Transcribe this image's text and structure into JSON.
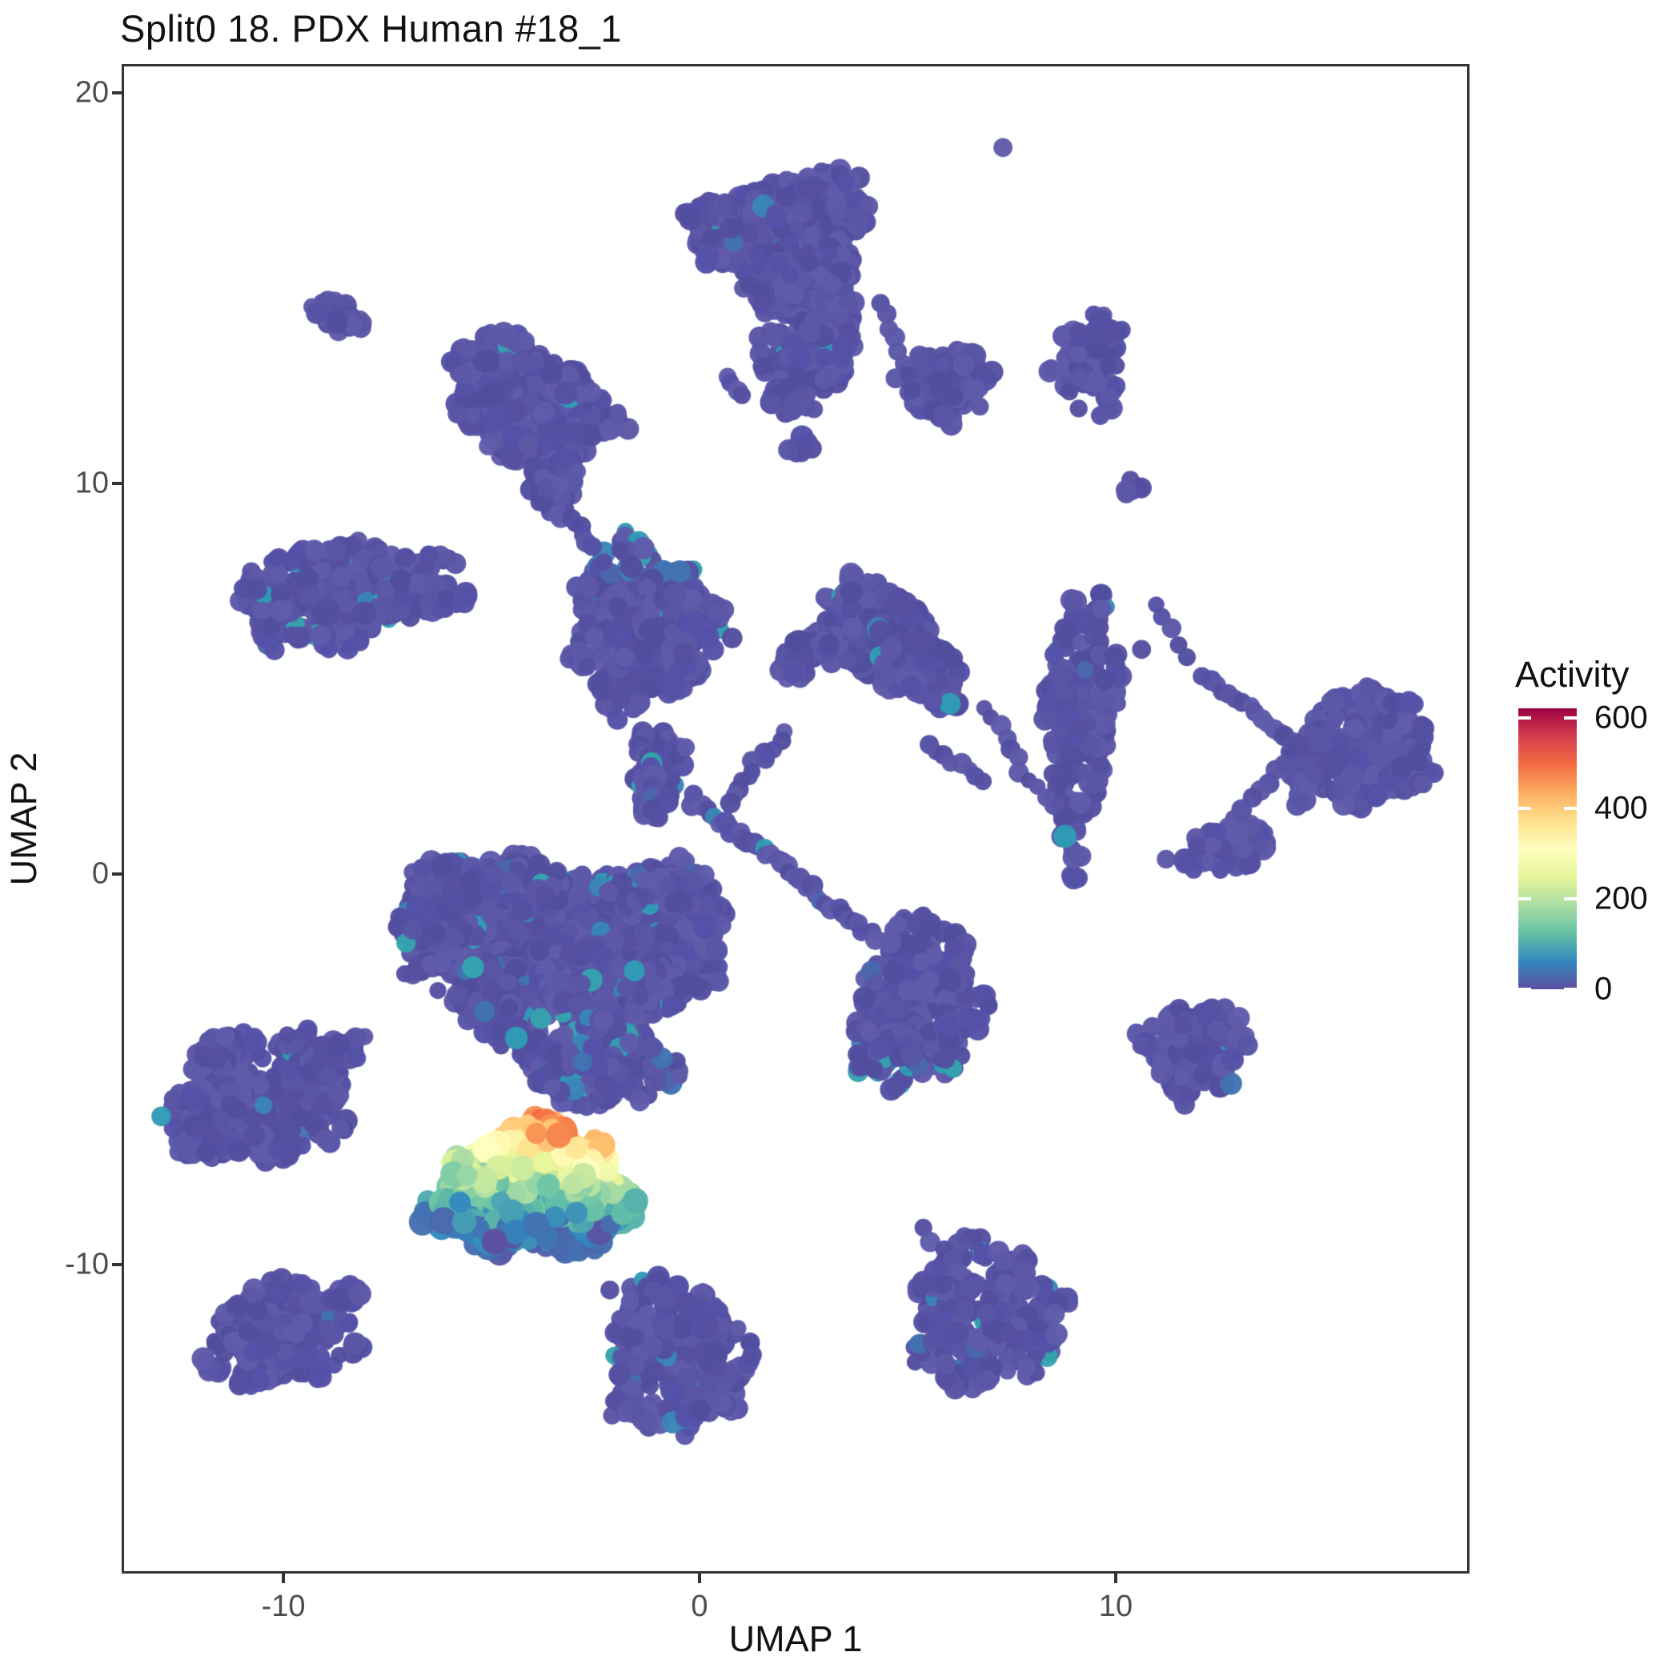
{
  "title": "Split0 18. PDX Human #18_1",
  "axes": {
    "x": {
      "label": "UMAP 1",
      "ticks": [
        -10,
        0,
        10
      ],
      "range": [
        -13.885,
        18.5
      ]
    },
    "y": {
      "label": "UMAP 2",
      "ticks": [
        20,
        10,
        0,
        -10
      ],
      "range": [
        -17.91,
        20.738
      ]
    }
  },
  "legend": {
    "title": "Activity",
    "ticks": [
      600,
      400,
      200,
      0
    ],
    "min": 0,
    "max": 600
  },
  "colors": {
    "title_color": "#111111",
    "tick_label_color": "#4d4d4d",
    "panel_border": "#333333",
    "base_point": "#5a55a5",
    "base_variants": [
      "#5a55a5",
      "#5650a2",
      "#5d58a7",
      "#534e9f",
      "#605baa",
      "#5552a8"
    ],
    "accent_variants": [
      "#4b66ae",
      "#4173b2",
      "#3b85b8",
      "#2f9cb5",
      "#35a3ae"
    ],
    "spectral_stops": [
      {
        "v": 0,
        "c": "#5e4fa2"
      },
      {
        "v": 60,
        "c": "#3288bd"
      },
      {
        "v": 120,
        "c": "#66c2a5"
      },
      {
        "v": 180,
        "c": "#abdda4"
      },
      {
        "v": 240,
        "c": "#e6f598"
      },
      {
        "v": 300,
        "c": "#ffffbf"
      },
      {
        "v": 360,
        "c": "#fee08b"
      },
      {
        "v": 420,
        "c": "#fdae61"
      },
      {
        "v": 480,
        "c": "#f46d43"
      },
      {
        "v": 540,
        "c": "#d53e4f"
      },
      {
        "v": 600,
        "c": "#9e0142"
      }
    ]
  },
  "chart_data": {
    "type": "scatter",
    "title": "Split0 18. PDX Human #18_1",
    "xlabel": "UMAP 1",
    "ylabel": "UMAP 2",
    "xlim": [
      -13.885,
      18.5
    ],
    "ylim": [
      -17.91,
      20.738
    ],
    "color_variable": "Activity",
    "color_range": [
      0,
      600
    ],
    "description": "UMAP embedding of single cells; most cells have Activity near 0 (purple). One cluster near (-4,-8) shows high Activity up to ~600 (green/yellow/orange/red).",
    "clusters": [
      {
        "name": "top-main",
        "cx": 2.0,
        "cy": 16.55,
        "rx": 2.15,
        "ry": 1.35,
        "rot": -8,
        "n": 470,
        "kind": "base",
        "accent_p": 0.01
      },
      {
        "name": "top-bridge",
        "cx": 2.55,
        "cy": 15.0,
        "rx": 1.3,
        "ry": 0.95,
        "rot": 5,
        "n": 160,
        "kind": "base",
        "accent_p": 0.01
      },
      {
        "name": "top-lobe-low",
        "cx": 2.62,
        "cy": 13.36,
        "rx": 1.15,
        "ry": 0.95,
        "rot": -10,
        "n": 150,
        "kind": "base",
        "accent_p": 0.02
      },
      {
        "name": "top-tip",
        "cx": 2.13,
        "cy": 12.3,
        "rx": 0.5,
        "ry": 0.5,
        "rot": 0,
        "n": 40,
        "kind": "base",
        "accent_p": 0.03
      },
      {
        "name": "tiny-pair-a",
        "cx": -8.95,
        "cy": 14.4,
        "rx": 0.42,
        "ry": 0.34,
        "rot": -20,
        "n": 16,
        "kind": "base",
        "accent_p": 0
      },
      {
        "name": "tiny-pair-b",
        "cx": -8.4,
        "cy": 14.02,
        "rx": 0.38,
        "ry": 0.3,
        "rot": -20,
        "n": 13,
        "kind": "base",
        "accent_p": 0
      },
      {
        "name": "teardrop",
        "cx": -4.1,
        "cy": 12.1,
        "rx": 2.05,
        "ry": 1.4,
        "rot": 25,
        "n": 400,
        "kind": "base",
        "accent_p": 0.01
      },
      {
        "name": "teardrop-tail",
        "cx": -3.5,
        "cy": 9.95,
        "rx": 0.6,
        "ry": 0.75,
        "rot": 10,
        "n": 55,
        "kind": "base",
        "accent_p": 0
      },
      {
        "name": "round-right",
        "cx": 5.88,
        "cy": 12.5,
        "rx": 1.05,
        "ry": 1.0,
        "rot": 0,
        "n": 100,
        "kind": "base",
        "accent_p": 0.01
      },
      {
        "name": "vert-teardrop",
        "cx": 9.35,
        "cy": 13.05,
        "rx": 0.85,
        "ry": 1.3,
        "rot": 5,
        "n": 85,
        "kind": "base",
        "accent_p": 0
      },
      {
        "name": "tiny-2",
        "cx": 10.35,
        "cy": 9.85,
        "rx": 0.3,
        "ry": 0.26,
        "rot": 20,
        "n": 7,
        "kind": "base",
        "accent_p": 0
      },
      {
        "name": "tiny-3",
        "cx": 2.42,
        "cy": 10.9,
        "rx": 0.32,
        "ry": 0.27,
        "rot": 0,
        "n": 7,
        "kind": "base",
        "accent_p": 0
      },
      {
        "name": "left",
        "cx": -8.7,
        "cy": 7.2,
        "rx": 2.45,
        "ry": 1.4,
        "rot": -8,
        "n": 360,
        "kind": "base",
        "accent_p": 0.05
      },
      {
        "name": "left-tip",
        "cx": -6.05,
        "cy": 7.05,
        "rx": 0.5,
        "ry": 0.38,
        "rot": 0,
        "n": 25,
        "kind": "base",
        "accent_p": 0
      },
      {
        "name": "fan",
        "cx": -1.35,
        "cy": 6.3,
        "rx": 1.8,
        "ry": 2.1,
        "rot": 8,
        "n": 420,
        "kind": "accent-top",
        "accent_p": 0.06
      },
      {
        "name": "fan-neck",
        "cx": -1.0,
        "cy": 2.6,
        "rx": 0.6,
        "ry": 1.1,
        "rot": 10,
        "n": 80,
        "kind": "base",
        "accent_p": 0.04
      },
      {
        "name": "bird",
        "cx": 4.54,
        "cy": 5.98,
        "rx": 2.0,
        "ry": 1.05,
        "rot": 40,
        "n": 330,
        "kind": "base",
        "accent_p": 0.02
      },
      {
        "name": "bird-left-arm",
        "cx": 2.6,
        "cy": 5.6,
        "rx": 0.8,
        "ry": 0.5,
        "rot": -25,
        "n": 45,
        "kind": "base",
        "accent_p": 0
      },
      {
        "name": "tall-vert",
        "cx": 9.15,
        "cy": 3.93,
        "rx": 0.8,
        "ry": 3.4,
        "rot": 3,
        "n": 230,
        "kind": "base",
        "accent_p": 0.03
      },
      {
        "name": "arrow",
        "cx": 15.79,
        "cy": 3.11,
        "rx": 1.75,
        "ry": 1.45,
        "rot": -20,
        "n": 280,
        "kind": "base",
        "accent_p": 0.01
      },
      {
        "name": "arrow-tail-blob",
        "cx": 12.6,
        "cy": 0.61,
        "rx": 1.3,
        "ry": 0.55,
        "rot": -10,
        "n": 60,
        "kind": "base",
        "accent_p": 0.02
      },
      {
        "name": "cm-a",
        "cx": -4.6,
        "cy": -1.2,
        "rx": 2.4,
        "ry": 1.75,
        "rot": 10,
        "n": 500,
        "kind": "base",
        "accent_p": 0.08
      },
      {
        "name": "cm-b",
        "cx": -1.3,
        "cy": -1.5,
        "rx": 2.1,
        "ry": 1.8,
        "rot": 0,
        "n": 480,
        "kind": "base",
        "accent_p": 0.08
      },
      {
        "name": "cm-c",
        "cx": -3.3,
        "cy": -3.3,
        "rx": 2.7,
        "ry": 1.6,
        "rot": -5,
        "n": 500,
        "kind": "base",
        "accent_p": 0.08
      },
      {
        "name": "cm-bottom",
        "cx": -2.3,
        "cy": -4.9,
        "rx": 1.6,
        "ry": 1.05,
        "rot": 0,
        "n": 220,
        "kind": "base",
        "accent_p": 0.13
      },
      {
        "name": "cm-left",
        "cx": -6.5,
        "cy": -1.6,
        "rx": 0.85,
        "ry": 1.0,
        "rot": 0,
        "n": 100,
        "kind": "base",
        "accent_p": 0.06
      },
      {
        "name": "cm-top1",
        "cx": -4.4,
        "cy": -0.35,
        "rx": 1.3,
        "ry": 0.6,
        "rot": 0,
        "n": 90,
        "kind": "base",
        "accent_p": 0.05
      },
      {
        "name": "cm-top2",
        "cx": -1.1,
        "cy": -0.5,
        "rx": 1.0,
        "ry": 0.6,
        "rot": 0,
        "n": 80,
        "kind": "base",
        "accent_p": 0.05
      },
      {
        "name": "arm-bulb",
        "cx": 5.2,
        "cy": -3.4,
        "rx": 1.5,
        "ry": 2.2,
        "rot": 18,
        "n": 300,
        "kind": "accent-bottom",
        "accent_p": 0.06
      },
      {
        "name": "claw",
        "cx": -10.5,
        "cy": -5.8,
        "rx": 2.2,
        "ry": 1.6,
        "rot": -18,
        "n": 290,
        "kind": "base",
        "accent_p": 0.05
      },
      {
        "name": "claw-f1",
        "cx": -11.5,
        "cy": -4.6,
        "rx": 0.85,
        "ry": 0.4,
        "rot": -30,
        "n": 45,
        "kind": "base",
        "accent_p": 0
      },
      {
        "name": "claw-f2",
        "cx": -8.8,
        "cy": -4.7,
        "rx": 0.9,
        "ry": 0.4,
        "rot": -35,
        "n": 55,
        "kind": "base",
        "accent_p": 0
      },
      {
        "name": "small-arrow",
        "cx": 11.9,
        "cy": -4.5,
        "rx": 1.3,
        "ry": 1.2,
        "rot": 0,
        "n": 135,
        "kind": "base",
        "accent_p": 0.01
      },
      {
        "name": "active",
        "cx": -4.0,
        "cy": -8.15,
        "rx": 2.35,
        "ry": 1.62,
        "rot": -4,
        "n": 650,
        "kind": "active",
        "accent_p": 0
      },
      {
        "name": "bottom-center",
        "cx": -0.55,
        "cy": -12.45,
        "rx": 1.7,
        "ry": 2.0,
        "rot": -20,
        "n": 300,
        "kind": "base",
        "accent_p": 0.03
      },
      {
        "name": "bottom-left",
        "cx": -10.05,
        "cy": -11.8,
        "rx": 1.8,
        "ry": 1.3,
        "rot": -12,
        "n": 220,
        "kind": "base",
        "accent_p": 0.01
      },
      {
        "name": "bl-tip",
        "cx": -8.5,
        "cy": -10.85,
        "rx": 0.42,
        "ry": 0.3,
        "rot": -30,
        "n": 14,
        "kind": "base",
        "accent_p": 0
      },
      {
        "name": "bottom-right",
        "cx": 6.9,
        "cy": -11.3,
        "rx": 1.85,
        "ry": 1.9,
        "rot": 0,
        "n": 280,
        "kind": "base",
        "accent_p": 0.04
      }
    ],
    "chains": [
      {
        "x1": 4.35,
        "y1": 14.6,
        "x2": 5.0,
        "y2": 12.8,
        "n": 7,
        "j": 0.1,
        "r": 10,
        "accent_p": 0
      },
      {
        "x1": 11.0,
        "y1": 6.9,
        "x2": 11.8,
        "y2": 5.6,
        "n": 5,
        "j": 0.12,
        "r": 10,
        "accent_p": 0
      },
      {
        "x1": 12.12,
        "y1": 5.1,
        "x2": 14.27,
        "y2": 3.38,
        "n": 15,
        "j": 0.07,
        "r": 10,
        "accent_p": 0
      },
      {
        "x1": 14.4,
        "y1": 3.3,
        "x2": 12.3,
        "y2": 0.75,
        "n": 12,
        "j": 0.12,
        "r": 10,
        "accent_p": 0
      },
      {
        "x1": 16.3,
        "y1": 4.5,
        "x2": 17.2,
        "y2": 4.3,
        "n": 8,
        "j": 0.1,
        "r": 10.5,
        "accent_p": 0
      },
      {
        "x1": -3.05,
        "y1": 9.2,
        "x2": -2.6,
        "y2": 8.35,
        "n": 6,
        "j": 0.12,
        "r": 10,
        "accent_p": 0
      },
      {
        "x1": -1.35,
        "y1": 3.6,
        "x2": -0.95,
        "y2": 1.4,
        "n": 18,
        "j": 0.2,
        "r": 11,
        "accent_p": 0.05
      },
      {
        "x1": -0.2,
        "y1": 1.9,
        "x2": 2.2,
        "y2": 0.1,
        "n": 22,
        "j": 0.22,
        "r": 10.5,
        "accent_p": 0.08
      },
      {
        "x1": 2.3,
        "y1": -0.1,
        "x2": 4.2,
        "y2": -1.7,
        "n": 16,
        "j": 0.18,
        "r": 10.5,
        "accent_p": 0.05
      },
      {
        "x1": 2.0,
        "y1": 3.6,
        "x2": 0.6,
        "y2": 1.9,
        "n": 12,
        "j": 0.25,
        "r": 10,
        "accent_p": 0.1
      },
      {
        "x1": 5.5,
        "y1": 3.3,
        "x2": 6.8,
        "y2": 2.4,
        "n": 8,
        "j": 0.15,
        "r": 10,
        "accent_p": 0
      },
      {
        "x1": 6.9,
        "y1": 4.3,
        "x2": 8.2,
        "y2": 1.9,
        "n": 10,
        "j": 0.2,
        "r": 10,
        "accent_p": 0
      },
      {
        "x1": -2.1,
        "y1": -10.65,
        "x2": -0.9,
        "y2": -11.6,
        "n": 4,
        "j": 0.1,
        "r": 10.5,
        "accent_p": 0
      },
      {
        "x1": 5.35,
        "y1": -9.1,
        "x2": 6.3,
        "y2": -10.1,
        "n": 5,
        "j": 0.12,
        "r": 10,
        "accent_p": 0
      },
      {
        "x1": 0.65,
        "y1": 12.8,
        "x2": 1.1,
        "y2": 12.25,
        "n": 4,
        "j": 0.12,
        "r": 10,
        "accent_p": 0
      }
    ],
    "singles": [
      [
        7.29,
        18.6
      ],
      [
        10.62,
        5.75
      ],
      [
        2.75,
        11.9
      ]
    ]
  }
}
